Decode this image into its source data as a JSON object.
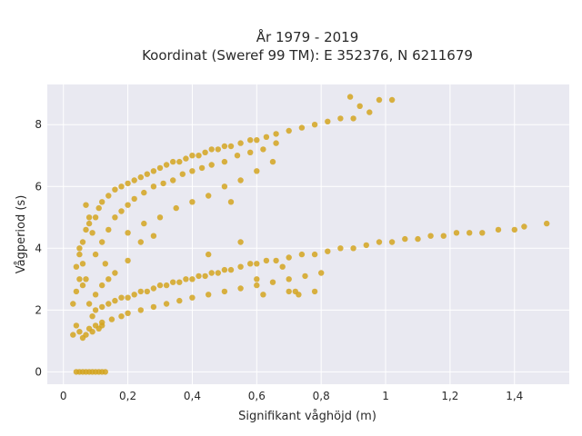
{
  "chart_data": {
    "type": "scatter",
    "title_line1": "År 1979 - 2019",
    "title_line2": "Koordinat (Sweref 99 TM): E 352376, N 6211679",
    "xlabel": "Signifikant våghöjd (m)",
    "ylabel": "Vågperiod (s)",
    "xlim": [
      -0.05,
      1.57
    ],
    "ylim": [
      -0.4,
      9.3
    ],
    "grid": true,
    "x_ticks": [
      {
        "value": 0,
        "label": "0"
      },
      {
        "value": 0.2,
        "label": "0,2"
      },
      {
        "value": 0.4,
        "label": "0,4"
      },
      {
        "value": 0.6,
        "label": "0,6"
      },
      {
        "value": 0.8,
        "label": "0,8"
      },
      {
        "value": 1.0,
        "label": "1"
      },
      {
        "value": 1.2,
        "label": "1,2"
      },
      {
        "value": 1.4,
        "label": "1,4"
      }
    ],
    "y_ticks": [
      {
        "value": 0,
        "label": "0"
      },
      {
        "value": 2,
        "label": "2"
      },
      {
        "value": 4,
        "label": "4"
      },
      {
        "value": 6,
        "label": "6"
      },
      {
        "value": 8,
        "label": "8"
      }
    ],
    "marker_color": "#d4a520",
    "background_color": "#e9e9f1",
    "series": [
      {
        "points": [
          [
            0.04,
            0.0
          ],
          [
            0.05,
            0.0
          ],
          [
            0.06,
            0.0
          ],
          [
            0.07,
            0.0
          ],
          [
            0.08,
            0.0
          ],
          [
            0.09,
            0.0
          ],
          [
            0.1,
            0.0
          ],
          [
            0.11,
            0.0
          ],
          [
            0.12,
            0.0
          ],
          [
            0.13,
            0.0
          ],
          [
            0.03,
            1.2
          ],
          [
            0.04,
            1.5
          ],
          [
            0.05,
            1.3
          ],
          [
            0.06,
            1.1
          ],
          [
            0.07,
            1.2
          ],
          [
            0.08,
            1.4
          ],
          [
            0.09,
            1.3
          ],
          [
            0.1,
            1.5
          ],
          [
            0.11,
            1.4
          ],
          [
            0.12,
            1.6
          ],
          [
            0.03,
            2.2
          ],
          [
            0.04,
            2.6
          ],
          [
            0.05,
            3.0
          ],
          [
            0.06,
            2.8
          ],
          [
            0.04,
            3.4
          ],
          [
            0.05,
            3.8
          ],
          [
            0.06,
            4.2
          ],
          [
            0.07,
            4.6
          ],
          [
            0.08,
            5.0
          ],
          [
            0.07,
            5.4
          ],
          [
            0.09,
            1.8
          ],
          [
            0.1,
            2.0
          ],
          [
            0.12,
            2.1
          ],
          [
            0.14,
            2.2
          ],
          [
            0.16,
            2.3
          ],
          [
            0.18,
            2.4
          ],
          [
            0.2,
            2.4
          ],
          [
            0.22,
            2.5
          ],
          [
            0.24,
            2.6
          ],
          [
            0.26,
            2.6
          ],
          [
            0.28,
            2.7
          ],
          [
            0.3,
            2.8
          ],
          [
            0.32,
            2.8
          ],
          [
            0.34,
            2.9
          ],
          [
            0.36,
            2.9
          ],
          [
            0.38,
            3.0
          ],
          [
            0.4,
            3.0
          ],
          [
            0.42,
            3.1
          ],
          [
            0.44,
            3.1
          ],
          [
            0.46,
            3.2
          ],
          [
            0.48,
            3.2
          ],
          [
            0.5,
            3.3
          ],
          [
            0.52,
            3.3
          ],
          [
            0.55,
            3.4
          ],
          [
            0.58,
            3.5
          ],
          [
            0.6,
            3.5
          ],
          [
            0.63,
            3.6
          ],
          [
            0.66,
            3.6
          ],
          [
            0.7,
            3.7
          ],
          [
            0.74,
            3.8
          ],
          [
            0.78,
            3.8
          ],
          [
            0.82,
            3.9
          ],
          [
            0.86,
            4.0
          ],
          [
            0.9,
            4.0
          ],
          [
            0.94,
            4.1
          ],
          [
            0.98,
            4.2
          ],
          [
            1.02,
            4.2
          ],
          [
            1.06,
            4.3
          ],
          [
            1.1,
            4.3
          ],
          [
            1.14,
            4.4
          ],
          [
            1.18,
            4.4
          ],
          [
            1.22,
            4.5
          ],
          [
            1.26,
            4.5
          ],
          [
            1.3,
            4.5
          ],
          [
            1.35,
            4.6
          ],
          [
            1.4,
            4.6
          ],
          [
            1.43,
            4.7
          ],
          [
            1.5,
            4.8
          ],
          [
            0.12,
            1.5
          ],
          [
            0.15,
            1.7
          ],
          [
            0.18,
            1.8
          ],
          [
            0.2,
            1.9
          ],
          [
            0.24,
            2.0
          ],
          [
            0.28,
            2.1
          ],
          [
            0.32,
            2.2
          ],
          [
            0.36,
            2.3
          ],
          [
            0.4,
            2.4
          ],
          [
            0.45,
            2.5
          ],
          [
            0.5,
            2.6
          ],
          [
            0.55,
            2.7
          ],
          [
            0.6,
            2.8
          ],
          [
            0.65,
            2.9
          ],
          [
            0.7,
            3.0
          ],
          [
            0.75,
            3.1
          ],
          [
            0.8,
            3.2
          ],
          [
            0.62,
            2.5
          ],
          [
            0.7,
            2.6
          ],
          [
            0.72,
            2.6
          ],
          [
            0.09,
            4.5
          ],
          [
            0.1,
            5.0
          ],
          [
            0.11,
            5.3
          ],
          [
            0.12,
            5.5
          ],
          [
            0.14,
            5.7
          ],
          [
            0.16,
            5.9
          ],
          [
            0.18,
            6.0
          ],
          [
            0.2,
            6.1
          ],
          [
            0.22,
            6.2
          ],
          [
            0.24,
            6.3
          ],
          [
            0.26,
            6.4
          ],
          [
            0.28,
            6.5
          ],
          [
            0.3,
            6.6
          ],
          [
            0.32,
            6.7
          ],
          [
            0.34,
            6.8
          ],
          [
            0.36,
            6.8
          ],
          [
            0.38,
            6.9
          ],
          [
            0.4,
            7.0
          ],
          [
            0.42,
            7.0
          ],
          [
            0.44,
            7.1
          ],
          [
            0.46,
            7.2
          ],
          [
            0.48,
            7.2
          ],
          [
            0.5,
            7.3
          ],
          [
            0.52,
            7.3
          ],
          [
            0.55,
            7.4
          ],
          [
            0.58,
            7.5
          ],
          [
            0.6,
            7.5
          ],
          [
            0.63,
            7.6
          ],
          [
            0.66,
            7.7
          ],
          [
            0.7,
            7.8
          ],
          [
            0.74,
            7.9
          ],
          [
            0.78,
            8.0
          ],
          [
            0.82,
            8.1
          ],
          [
            0.86,
            8.2
          ],
          [
            0.89,
            8.9
          ],
          [
            0.92,
            8.6
          ],
          [
            0.95,
            8.4
          ],
          [
            0.98,
            8.8
          ],
          [
            1.02,
            8.8
          ],
          [
            0.9,
            8.2
          ],
          [
            0.1,
            3.8
          ],
          [
            0.12,
            4.2
          ],
          [
            0.14,
            4.6
          ],
          [
            0.16,
            5.0
          ],
          [
            0.18,
            5.2
          ],
          [
            0.2,
            5.4
          ],
          [
            0.22,
            5.6
          ],
          [
            0.25,
            5.8
          ],
          [
            0.28,
            6.0
          ],
          [
            0.31,
            6.1
          ],
          [
            0.34,
            6.2
          ],
          [
            0.37,
            6.4
          ],
          [
            0.4,
            6.5
          ],
          [
            0.43,
            6.6
          ],
          [
            0.46,
            6.7
          ],
          [
            0.5,
            6.8
          ],
          [
            0.54,
            7.0
          ],
          [
            0.58,
            7.1
          ],
          [
            0.62,
            7.2
          ],
          [
            0.66,
            7.4
          ],
          [
            0.2,
            4.5
          ],
          [
            0.25,
            4.8
          ],
          [
            0.3,
            5.0
          ],
          [
            0.35,
            5.3
          ],
          [
            0.4,
            5.5
          ],
          [
            0.45,
            5.7
          ],
          [
            0.5,
            6.0
          ],
          [
            0.55,
            6.2
          ],
          [
            0.6,
            6.5
          ],
          [
            0.65,
            6.8
          ],
          [
            0.2,
            3.6
          ],
          [
            0.24,
            4.2
          ],
          [
            0.28,
            4.4
          ],
          [
            0.45,
            3.8
          ],
          [
            0.55,
            4.2
          ],
          [
            0.6,
            3.0
          ],
          [
            0.68,
            3.4
          ],
          [
            0.73,
            2.5
          ],
          [
            0.78,
            2.6
          ],
          [
            0.52,
            5.5
          ],
          [
            0.1,
            2.5
          ],
          [
            0.12,
            2.8
          ],
          [
            0.14,
            3.0
          ],
          [
            0.16,
            3.2
          ],
          [
            0.13,
            3.5
          ],
          [
            0.08,
            2.2
          ],
          [
            0.07,
            3.0
          ],
          [
            0.06,
            3.5
          ],
          [
            0.05,
            4.0
          ],
          [
            0.08,
            4.8
          ]
        ]
      }
    ]
  }
}
